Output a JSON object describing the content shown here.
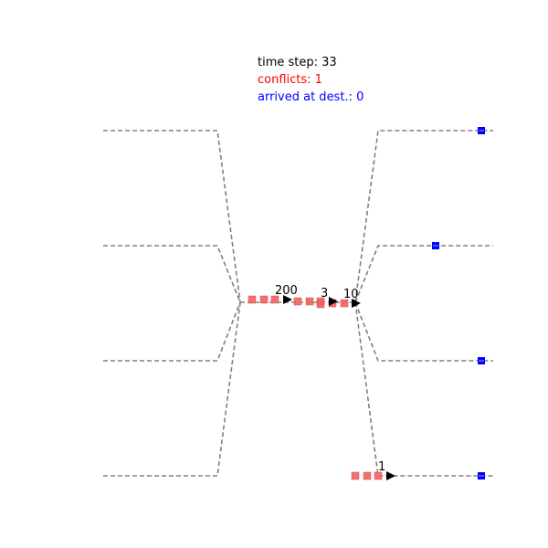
{
  "status": {
    "time_step": "time step: 33",
    "conflicts": "conflicts: 1",
    "arrived": "arrived at dest.: 0"
  },
  "colors": {
    "time_step": "#000000",
    "conflicts": "#ff0000",
    "arrived": "#0000ff",
    "route": "#808080",
    "trail": "#f06060",
    "agent": "#000000",
    "destination": "#0000ff"
  },
  "agents": [
    {
      "label": "200"
    },
    {
      "label": "3"
    },
    {
      "label": "10"
    },
    {
      "label": "1"
    }
  ]
}
